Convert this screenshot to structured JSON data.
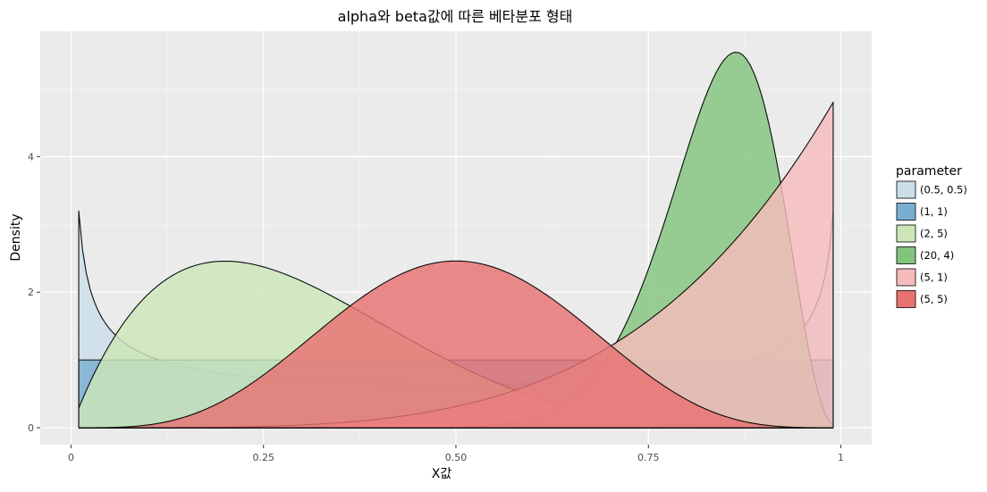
{
  "chart_data": {
    "type": "area",
    "title": "alpha와 beta값에 따른 베타분포 형태",
    "xlabel": "X값",
    "ylabel": "Density",
    "xlim": [
      -0.04,
      1.04
    ],
    "ylim": [
      -0.25,
      5.85
    ],
    "x_ticks": [
      0,
      0.25,
      0.5,
      0.75,
      1
    ],
    "x_tick_labels": [
      "0",
      "0.25",
      "0.50",
      "0.75",
      "1"
    ],
    "y_ticks": [
      0,
      2,
      4
    ],
    "y_tick_labels": [
      "0",
      "2",
      "4"
    ],
    "x_minor_ticks": [
      0.125,
      0.375,
      0.625,
      0.875
    ],
    "y_minor_ticks": [
      1,
      3,
      5
    ],
    "x_domain": [
      0.01,
      0.99
    ],
    "grid": true,
    "legend_title": "parameter",
    "legend_position": "right",
    "series": [
      {
        "name": "(0.5, 0.5)",
        "alpha": 0.5,
        "beta": 0.5,
        "color": "#c9dee8"
      },
      {
        "name": "(1, 1)",
        "alpha": 1,
        "beta": 1,
        "color": "#7aaed1"
      },
      {
        "name": "(2, 5)",
        "alpha": 2,
        "beta": 5,
        "color": "#cce6b8"
      },
      {
        "name": "(20, 4)",
        "alpha": 20,
        "beta": 4,
        "color": "#83c47d"
      },
      {
        "name": "(5, 1)",
        "alpha": 5,
        "beta": 1,
        "color": "#f6bcbc"
      },
      {
        "name": "(5, 5)",
        "alpha": 5,
        "beta": 5,
        "color": "#e77272"
      }
    ]
  }
}
